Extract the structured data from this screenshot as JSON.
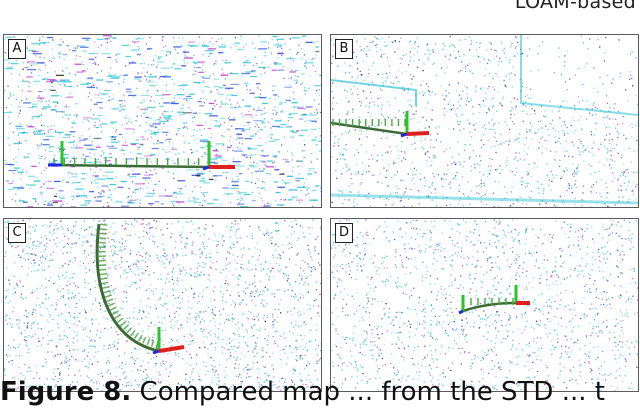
{
  "header": {
    "text": "LOAM-based"
  },
  "panels": [
    {
      "label": "A",
      "trajectory": "straight-horizontal"
    },
    {
      "label": "B",
      "trajectory": "short-horizontal"
    },
    {
      "label": "C",
      "trajectory": "curved-arc"
    },
    {
      "label": "D",
      "trajectory": "short-curved"
    }
  ],
  "caption": {
    "figure_label": "Figure 8.",
    "text": "Compared map ... from the STD ... t"
  },
  "colors": {
    "points_cyan": "#35c6d6",
    "points_blue": "#3a55d9",
    "points_magenta": "#c040c8",
    "trajectory_path": "#4c7c3e",
    "axis_red": "#e0201c",
    "axis_green": "#2cc32c",
    "axis_blue": "#1c2ae0"
  }
}
